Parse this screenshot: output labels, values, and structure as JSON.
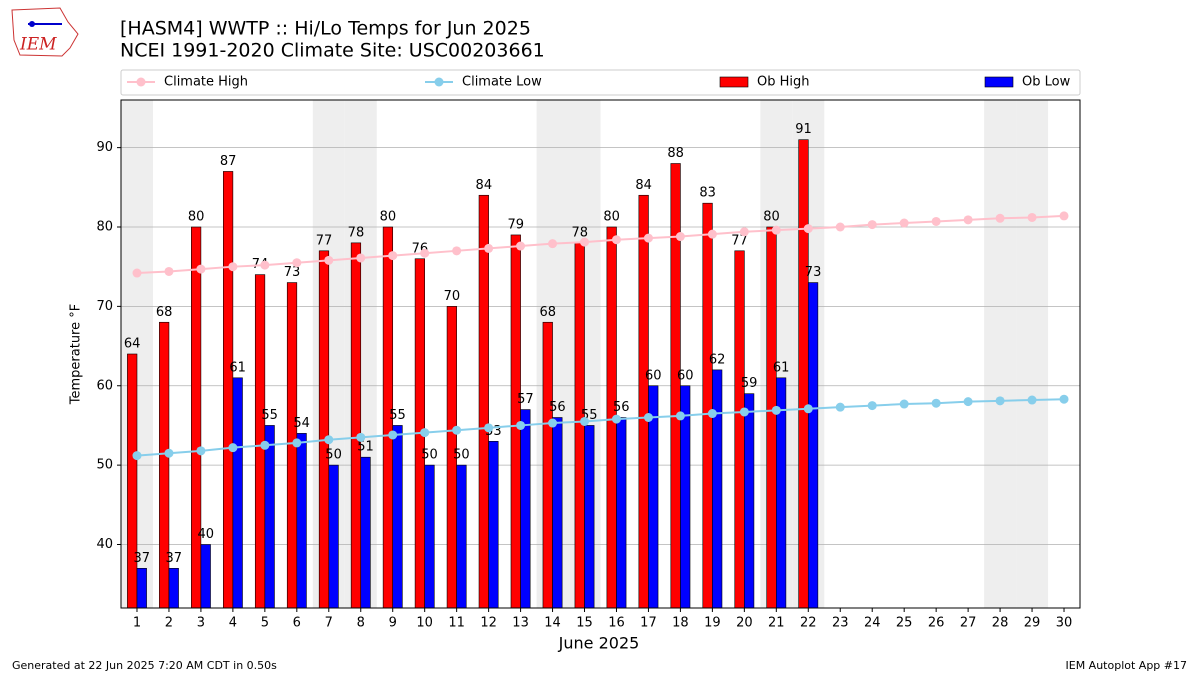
{
  "chart_data": {
    "type": "bar-line",
    "title": "[HASM4] WWTP :: Hi/Lo Temps for Jun 2025",
    "subtitle": "NCEI 1991-2020 Climate Site: USC00203661",
    "x_label": "June 2025",
    "y_label": "Temperature °F",
    "logo_text": "IEM",
    "footer_left": "Generated at 22 Jun 2025 7:20 AM CDT in 0.50s",
    "footer_right": "IEM Autoplot App #17",
    "x": [
      1,
      2,
      3,
      4,
      5,
      6,
      7,
      8,
      9,
      10,
      11,
      12,
      13,
      14,
      15,
      16,
      17,
      18,
      19,
      20,
      21,
      22,
      23,
      24,
      25,
      26,
      27,
      28,
      29,
      30
    ],
    "weekend_days": [
      1,
      7,
      8,
      14,
      15,
      21,
      22,
      28,
      29
    ],
    "xlim": [
      0.5,
      30.5
    ],
    "ylim": [
      32,
      96
    ],
    "yticks": [
      40,
      50,
      60,
      70,
      80,
      90
    ],
    "grid": true,
    "legend": "top",
    "series": [
      {
        "name": "Climate High",
        "kind": "line",
        "color": "#ffc0cb",
        "values": [
          74.2,
          74.4,
          74.7,
          75.0,
          75.2,
          75.5,
          75.8,
          76.1,
          76.4,
          76.7,
          77.0,
          77.3,
          77.6,
          77.9,
          78.1,
          78.4,
          78.6,
          78.8,
          79.1,
          79.4,
          79.6,
          79.8,
          80.0,
          80.3,
          80.5,
          80.7,
          80.9,
          81.1,
          81.2,
          81.4
        ]
      },
      {
        "name": "Climate Low",
        "kind": "line",
        "color": "#87ceeb",
        "values": [
          51.2,
          51.5,
          51.8,
          52.2,
          52.5,
          52.8,
          53.2,
          53.5,
          53.8,
          54.1,
          54.4,
          54.7,
          55.0,
          55.3,
          55.5,
          55.8,
          56.0,
          56.2,
          56.5,
          56.7,
          56.9,
          57.1,
          57.3,
          57.5,
          57.7,
          57.8,
          58.0,
          58.1,
          58.2,
          58.3
        ]
      },
      {
        "name": "Ob High",
        "kind": "bar",
        "color": "#ff0000",
        "values": [
          64,
          68,
          80,
          87,
          74,
          73,
          77,
          78,
          80,
          76,
          70,
          84,
          79,
          68,
          78,
          80,
          84,
          88,
          83,
          77,
          80,
          91,
          null,
          null,
          null,
          null,
          null,
          null,
          null,
          null
        ]
      },
      {
        "name": "Ob Low",
        "kind": "bar",
        "color": "#0000ff",
        "values": [
          37,
          37,
          40,
          61,
          55,
          54,
          50,
          51,
          55,
          50,
          50,
          53,
          57,
          56,
          55,
          56,
          60,
          60,
          62,
          59,
          61,
          73,
          null,
          null,
          null,
          null,
          null,
          null,
          null,
          null
        ]
      }
    ]
  }
}
